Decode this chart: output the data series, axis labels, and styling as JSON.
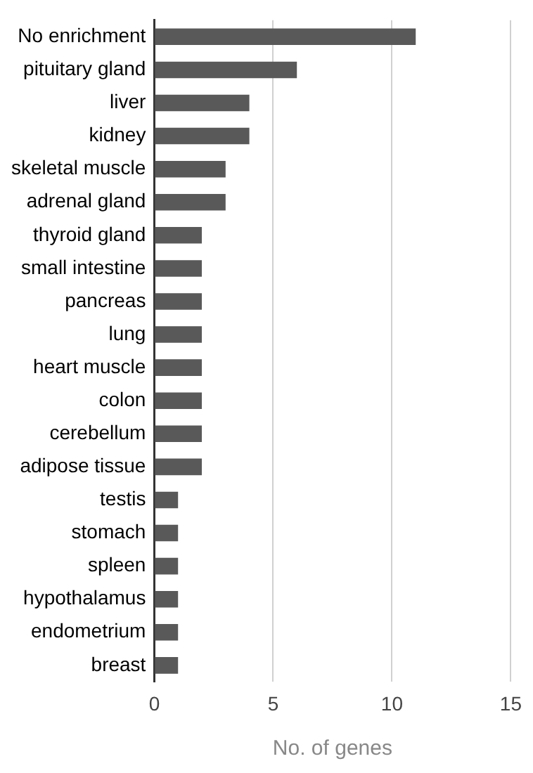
{
  "chart_data": {
    "type": "bar",
    "orientation": "horizontal",
    "xlabel": "No. of genes",
    "categories": [
      "No enrichment",
      "pituitary gland",
      "liver",
      "kidney",
      "skeletal muscle",
      "adrenal gland",
      "thyroid gland",
      "small intestine",
      "pancreas",
      "lung",
      "heart muscle",
      "colon",
      "cerebellum",
      "adipose tissue",
      "testis",
      "stomach",
      "spleen",
      "hypothalamus",
      "endometrium",
      "breast"
    ],
    "values": [
      11,
      6,
      4,
      4,
      3,
      3,
      2,
      2,
      2,
      2,
      2,
      2,
      2,
      2,
      1,
      1,
      1,
      1,
      1,
      1
    ],
    "color": "#595959",
    "xlim": [
      0,
      15
    ],
    "xticks": [
      0,
      5,
      10,
      15
    ],
    "grid": "x",
    "legend": false
  }
}
